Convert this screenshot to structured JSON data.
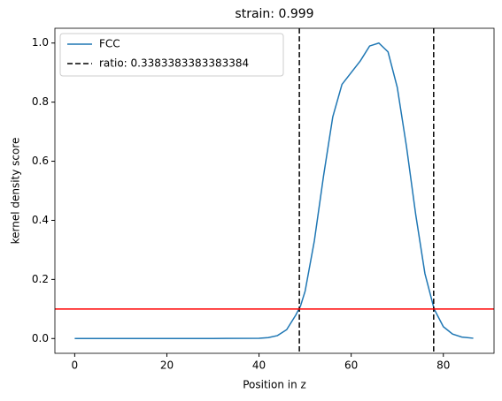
{
  "chart_data": {
    "type": "line",
    "title": "strain: 0.999",
    "x_label": "Position in z",
    "y_label": "kernel density score",
    "x": [
      0,
      10,
      20,
      30,
      40,
      42,
      44,
      46,
      48,
      49,
      50,
      52,
      54,
      56,
      58,
      60,
      62,
      64,
      66,
      68,
      70,
      72,
      74,
      76,
      78,
      80,
      82,
      84,
      86.5
    ],
    "series": [
      {
        "name": "FCC",
        "color": "#1f77b4",
        "values": [
          0,
          0,
          0,
          0,
          0.001,
          0.003,
          0.01,
          0.03,
          0.08,
          0.11,
          0.16,
          0.33,
          0.55,
          0.75,
          0.86,
          0.9,
          0.94,
          0.99,
          1.0,
          0.97,
          0.85,
          0.65,
          0.42,
          0.22,
          0.1,
          0.04,
          0.015,
          0.005,
          0.001
        ]
      }
    ],
    "vlines": {
      "name": "ratio: 0.3383383383383384",
      "color": "#000000",
      "values": [
        48.75,
        77.9
      ]
    },
    "hline": {
      "value": 0.1,
      "color": "#ff0000"
    },
    "xlim": [
      -4.3,
      91
    ],
    "ylim": [
      -0.05,
      1.05
    ],
    "xticks": [
      0,
      20,
      40,
      60,
      80
    ],
    "yticks": [
      {
        "value": 0,
        "label": "0.0"
      },
      {
        "value": 0.2,
        "label": "0.2"
      },
      {
        "value": 0.4,
        "label": "0.4"
      },
      {
        "value": 0.6,
        "label": "0.6"
      },
      {
        "value": 0.8,
        "label": "0.8"
      },
      {
        "value": 1,
        "label": "1.0"
      }
    ],
    "legend": "upper left"
  }
}
